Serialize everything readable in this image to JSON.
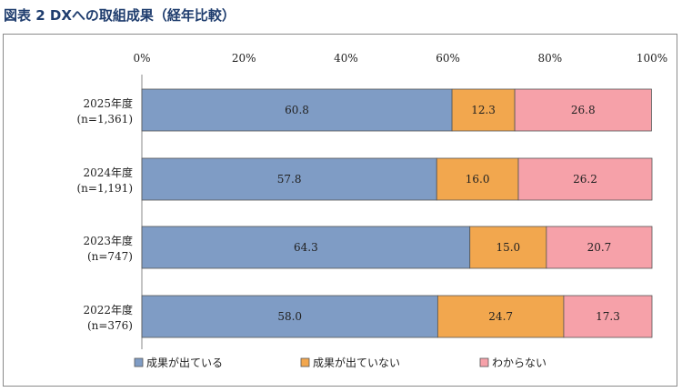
{
  "figure": {
    "title": "図表 2 DXへの取組成果（経年比較）"
  },
  "chart_data": {
    "type": "bar",
    "orientation": "horizontal",
    "stacked": true,
    "percent": true,
    "categories": [
      [
        "2025年度",
        "(n=1,361)"
      ],
      [
        "2024年度",
        "(n=1,191)"
      ],
      [
        "2023年度",
        "(n=747)"
      ],
      [
        "2022年度",
        "(n=376)"
      ]
    ],
    "series": [
      {
        "name": "成果が出ている",
        "color": "#7f9cc5",
        "values": [
          60.8,
          57.8,
          64.3,
          58.0
        ],
        "labels": [
          "60.8",
          "57.8",
          "64.3",
          "58.0"
        ]
      },
      {
        "name": "成果が出ていない",
        "color": "#f2a74e",
        "values": [
          12.3,
          16.0,
          15.0,
          24.7
        ],
        "labels": [
          "12.3",
          "16.0",
          "15.0",
          "24.7"
        ]
      },
      {
        "name": "わからない",
        "color": "#f6a1a9",
        "values": [
          26.8,
          26.2,
          20.7,
          17.3
        ],
        "labels": [
          "26.8",
          "26.2",
          "20.7",
          "17.3"
        ]
      }
    ],
    "x_ticks": [
      "0%",
      "20%",
      "40%",
      "60%",
      "80%",
      "100%"
    ],
    "xlim": [
      0,
      100
    ],
    "grid": false,
    "legend_position": "bottom"
  }
}
